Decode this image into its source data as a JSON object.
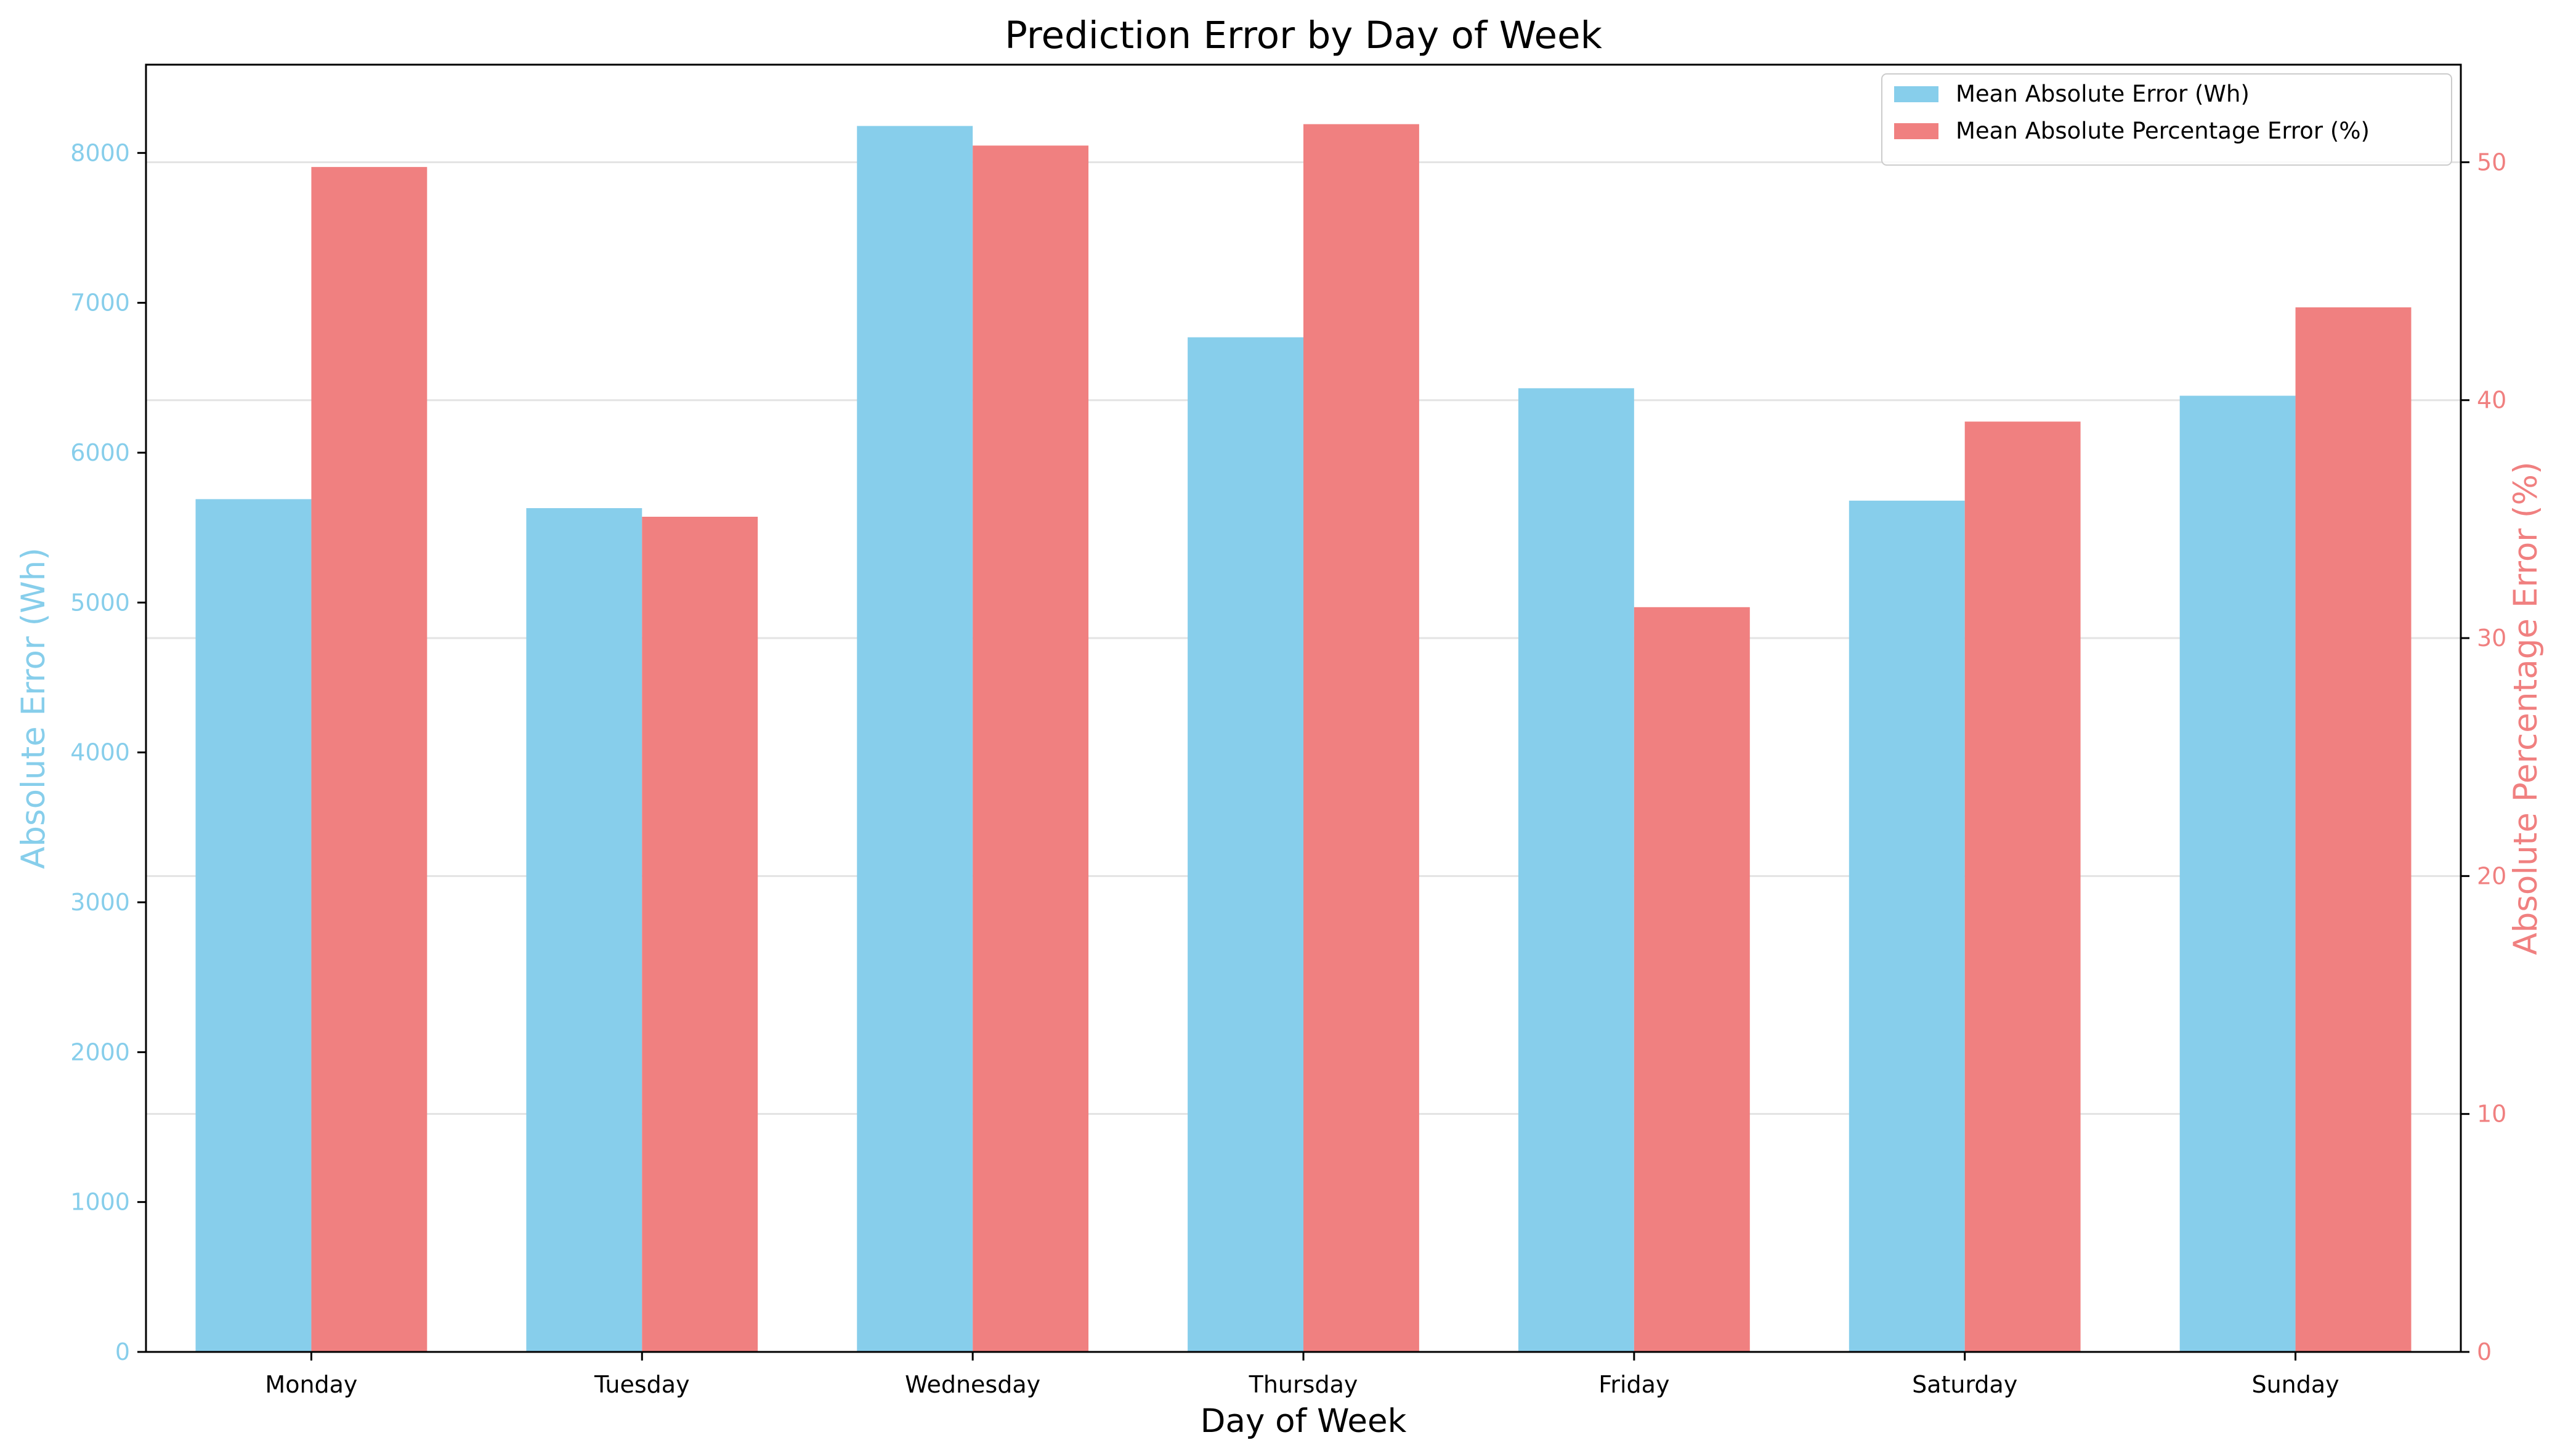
{
  "chart_data": {
    "type": "bar",
    "title": "Prediction Error by Day of Week",
    "xlabel": "Day of Week",
    "ylabel_left": "Absolute Error (Wh)",
    "ylabel_right": "Absolute Percentage Error (%)",
    "categories": [
      "Monday",
      "Tuesday",
      "Wednesday",
      "Thursday",
      "Friday",
      "Saturday",
      "Sunday"
    ],
    "series": [
      {
        "name": "Mean Absolute Error (Wh)",
        "axis": "left",
        "color": "#87CEEB",
        "values": [
          5690,
          5630,
          8180,
          6770,
          6430,
          5680,
          6380
        ]
      },
      {
        "name": "Mean Absolute Percentage Error (%)",
        "axis": "right",
        "color": "#F08080",
        "values": [
          49.8,
          35.1,
          50.7,
          51.6,
          31.3,
          39.1,
          43.9
        ]
      }
    ],
    "ylim_left": [
      0,
      8589
    ],
    "ylim_right": [
      0,
      54.1
    ],
    "yticks_left": [
      "0",
      "1000",
      "2000",
      "3000",
      "4000",
      "5000",
      "6000",
      "7000",
      "8000"
    ],
    "yticks_right": [
      "0",
      "10",
      "20",
      "30",
      "40",
      "50"
    ],
    "left_axis_color": "#87CEEB",
    "right_axis_color": "#F08080",
    "grid": true,
    "legend_position": "upper right"
  }
}
